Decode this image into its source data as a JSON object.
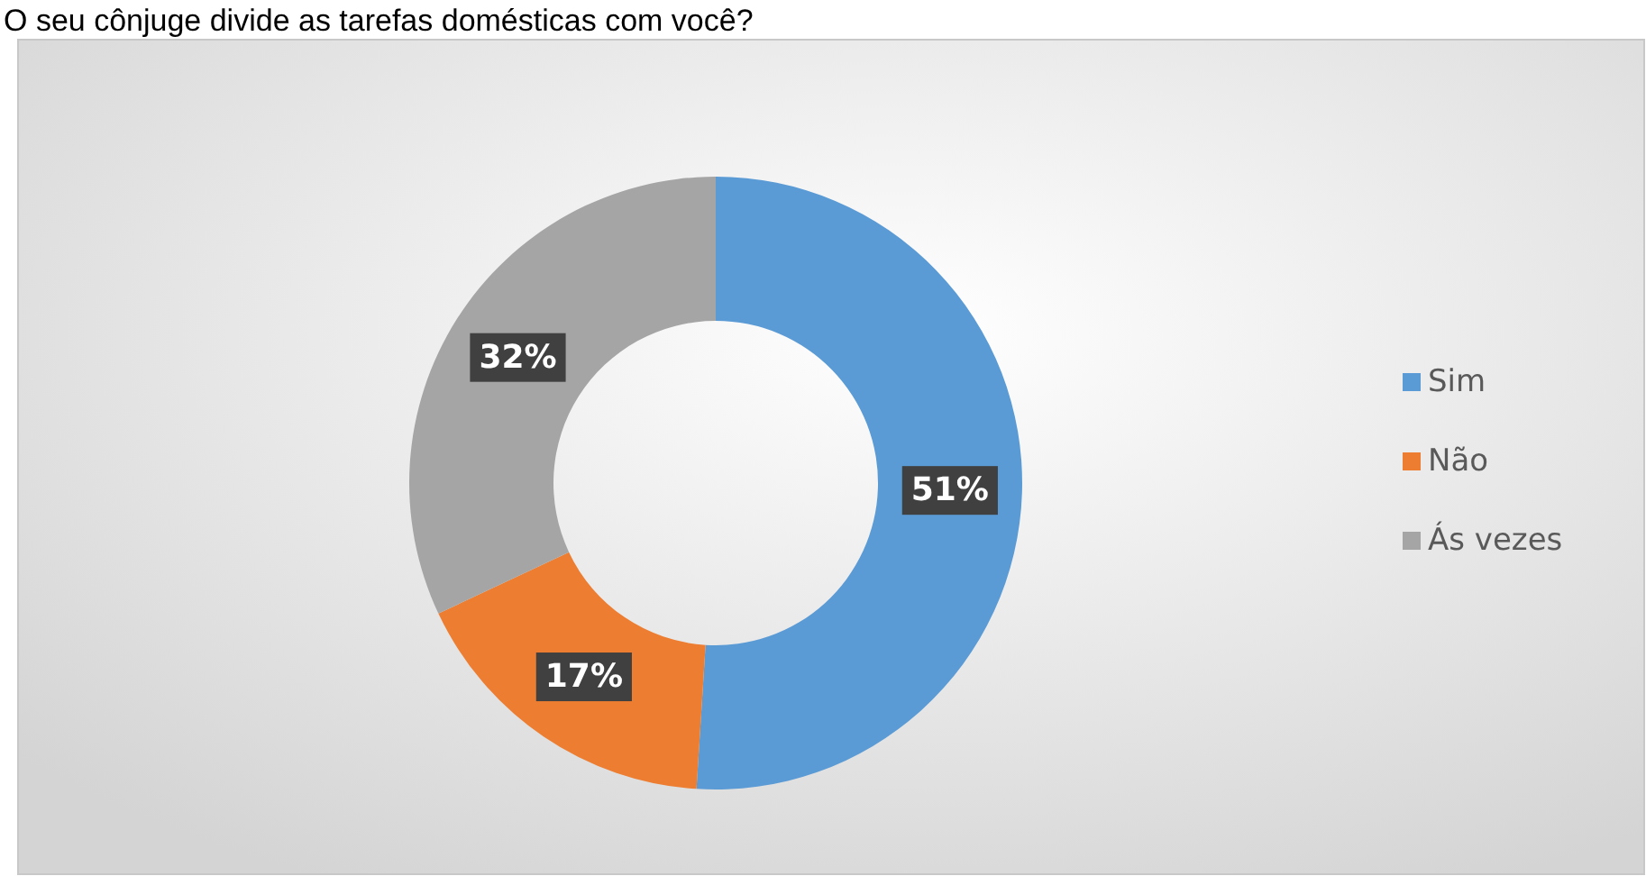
{
  "chart_data": {
    "type": "donut",
    "title": "O seu cônjuge divide as tarefas domésticas com você?",
    "categories": [
      "Sim",
      "Não",
      "Ás vezes"
    ],
    "values": [
      51,
      17,
      32
    ],
    "value_labels": [
      "51%",
      "17%",
      "32%"
    ],
    "colors": [
      "#5b9bd5",
      "#ed7d31",
      "#a5a5a5"
    ],
    "legend": "right"
  }
}
